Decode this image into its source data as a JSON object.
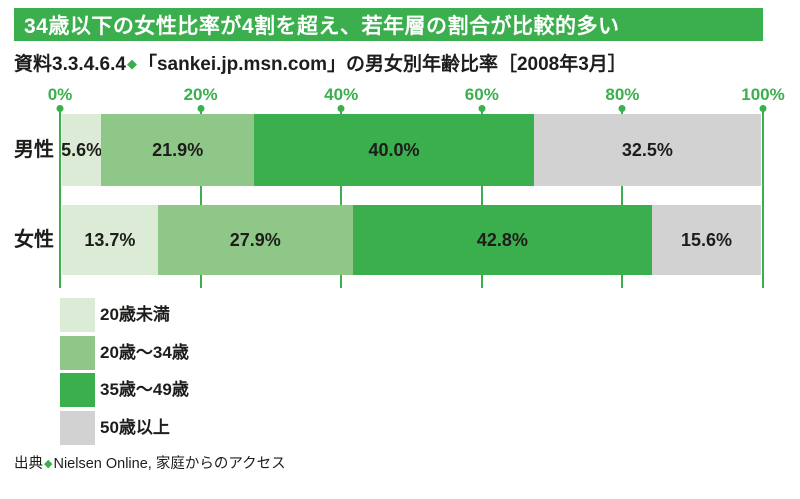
{
  "colors": {
    "green": "#3bae4e",
    "green_mid": "#8ec787",
    "green_light": "#dcebd5",
    "gray": "#d2d2d2",
    "text": "#1d1d1b",
    "white": "#ffffff"
  },
  "header": {
    "title": "34歳以下の女性比率が4割を超え、若年層の割合が比較的多い"
  },
  "subtitle": {
    "prefix": "資料3.3.4.6.4",
    "diamond": "◆",
    "text": "「sankei.jp.msn.com」の男女別年齢比率［2008年3月］"
  },
  "chart_data": {
    "type": "bar",
    "orientation": "horizontal-stacked",
    "title": "「sankei.jp.msn.com」の男女別年齢比率［2008年3月］",
    "xlim": [
      0,
      100
    ],
    "x_ticks": [
      "0%",
      "20%",
      "40%",
      "60%",
      "80%",
      "100%"
    ],
    "x_tick_values": [
      0,
      20,
      40,
      60,
      80,
      100
    ],
    "grid": true,
    "categories": [
      "男性",
      "女性"
    ],
    "series": [
      {
        "name": "20歳未満",
        "color": "#dcebd5",
        "values": [
          5.6,
          13.7
        ]
      },
      {
        "name": "20歳～34歳",
        "color": "#8ec787",
        "values": [
          21.9,
          27.9
        ]
      },
      {
        "name": "35歳～49歳",
        "color": "#3bae4e",
        "values": [
          40.0,
          42.8
        ]
      },
      {
        "name": "50歳以上",
        "color": "#d2d2d2",
        "values": [
          32.5,
          15.6
        ]
      }
    ],
    "value_labels": [
      [
        "5.6%",
        "21.9%",
        "40.0%",
        "32.5%"
      ],
      [
        "13.7%",
        "27.9%",
        "42.8%",
        "15.6%"
      ]
    ],
    "legend_position": "bottom-left"
  },
  "source": {
    "prefix": "出典",
    "diamond": "◆",
    "text": "Nielsen Online, 家庭からのアクセス"
  }
}
